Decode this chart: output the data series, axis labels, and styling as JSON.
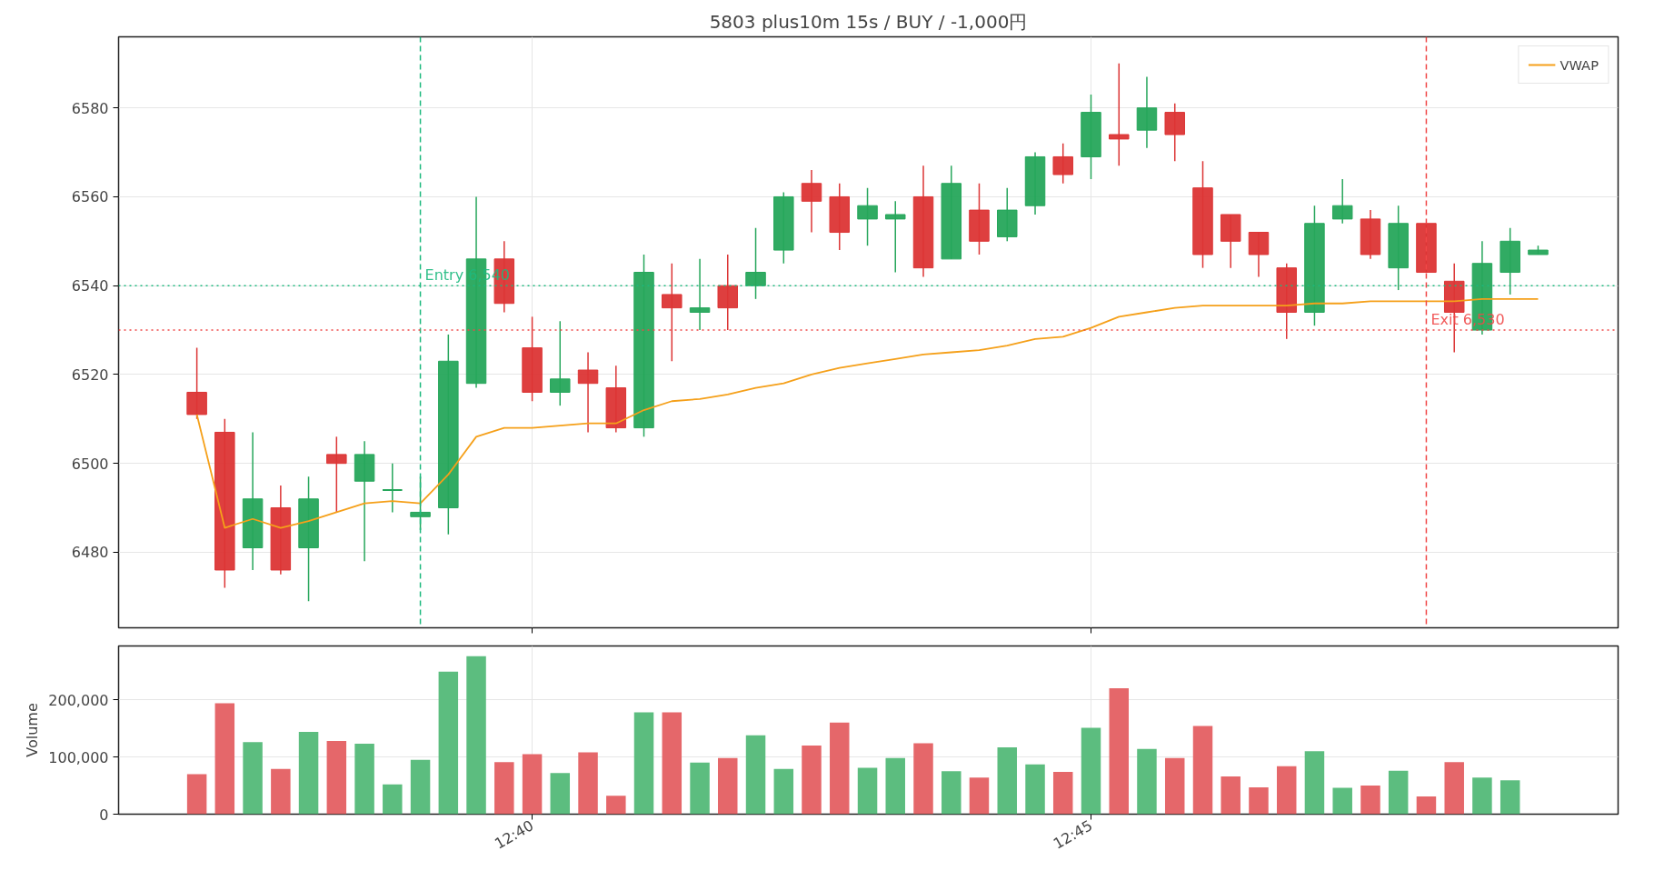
{
  "chart_data": [
    {
      "type": "candlestick",
      "title": "5803 plus10m 15s / BUY / -1,000円",
      "x": [
        12.61667,
        12.62083,
        12.625,
        12.62917,
        12.63333,
        12.6375,
        12.64167,
        12.64583,
        12.65,
        12.65417,
        12.65833,
        12.6625,
        12.66667,
        12.67083,
        12.675,
        12.67917,
        12.68333,
        12.6875,
        12.69167,
        12.69583,
        12.7,
        12.70417,
        12.70833,
        12.7125,
        12.71667,
        12.72083,
        12.725,
        12.72917,
        12.73333,
        12.7375,
        12.74167,
        12.74583,
        12.75,
        12.75417,
        12.75833,
        12.7625,
        12.76667,
        12.77083,
        12.775,
        12.77917,
        12.78333,
        12.7875,
        12.79167,
        12.79583,
        12.8,
        12.80417,
        12.80833,
        12.8125,
        12.81667
      ],
      "ohlc": [
        [
          6516,
          6526,
          6510,
          6511
        ],
        [
          6507,
          6510,
          6472,
          6476
        ],
        [
          6481,
          6507,
          6476,
          6492
        ],
        [
          6490,
          6495,
          6475,
          6476
        ],
        [
          6481,
          6497,
          6469,
          6492
        ],
        [
          6502,
          6506,
          6489,
          6500
        ],
        [
          6496,
          6505,
          6478,
          6502
        ],
        [
          6494,
          6500,
          6489,
          6494
        ],
        [
          6488,
          6497,
          6485,
          6489
        ],
        [
          6490,
          6529,
          6484,
          6523
        ],
        [
          6518,
          6560,
          6517,
          6546
        ],
        [
          6546,
          6550,
          6534,
          6536
        ],
        [
          6526,
          6533,
          6514,
          6516
        ],
        [
          6516,
          6532,
          6513,
          6519
        ],
        [
          6521,
          6525,
          6507,
          6518
        ],
        [
          6517,
          6522,
          6507,
          6508
        ],
        [
          6508,
          6547,
          6506,
          6543
        ],
        [
          6538,
          6545,
          6523,
          6535
        ],
        [
          6534,
          6546,
          6530,
          6535
        ],
        [
          6540,
          6547,
          6530,
          6535
        ],
        [
          6540,
          6553,
          6537,
          6543
        ],
        [
          6548,
          6561,
          6545,
          6560
        ],
        [
          6563,
          6566,
          6552,
          6559
        ],
        [
          6560,
          6563,
          6548,
          6552
        ],
        [
          6555,
          6562,
          6549,
          6558
        ],
        [
          6555,
          6559,
          6543,
          6556
        ],
        [
          6560,
          6567,
          6542,
          6544
        ],
        [
          6546,
          6567,
          6546,
          6563
        ],
        [
          6557,
          6563,
          6547,
          6550
        ],
        [
          6551,
          6562,
          6550,
          6557
        ],
        [
          6558,
          6570,
          6556,
          6569
        ],
        [
          6569,
          6572,
          6563,
          6565
        ],
        [
          6569,
          6583,
          6564,
          6579
        ],
        [
          6574,
          6590,
          6567,
          6573
        ],
        [
          6575,
          6587,
          6571,
          6580
        ],
        [
          6579,
          6581,
          6568,
          6574
        ],
        [
          6562,
          6568,
          6544,
          6547
        ],
        [
          6556,
          6556,
          6544,
          6550
        ],
        [
          6552,
          6552,
          6542,
          6547
        ],
        [
          6544,
          6545,
          6528,
          6534
        ],
        [
          6534,
          6558,
          6531,
          6554
        ],
        [
          6555,
          6564,
          6554,
          6558
        ],
        [
          6555,
          6557,
          6546,
          6547
        ],
        [
          6544,
          6558,
          6539,
          6554
        ],
        [
          6554,
          6554,
          6543,
          6543
        ],
        [
          6541,
          6545,
          6525,
          6534
        ],
        [
          6530,
          6550,
          6529,
          6545
        ],
        [
          6543,
          6553,
          6538,
          6550
        ],
        [
          6547,
          6549,
          6547,
          6548
        ]
      ],
      "colors": [
        "#dc3535",
        "#dc3535",
        "#26a65b",
        "#dc3535",
        "#26a65b",
        "#dc3535",
        "#26a65b",
        "#26a65b",
        "#26a65b",
        "#26a65b",
        "#26a65b",
        "#dc3535",
        "#dc3535",
        "#26a65b",
        "#dc3535",
        "#dc3535",
        "#26a65b",
        "#dc3535",
        "#26a65b",
        "#dc3535",
        "#26a65b",
        "#26a65b",
        "#dc3535",
        "#dc3535",
        "#26a65b",
        "#26a65b",
        "#dc3535",
        "#26a65b",
        "#dc3535",
        "#26a65b",
        "#26a65b",
        "#dc3535",
        "#26a65b",
        "#dc3535",
        "#26a65b",
        "#dc3535",
        "#dc3535",
        "#dc3535",
        "#dc3535",
        "#dc3535",
        "#26a65b",
        "#26a65b",
        "#dc3535",
        "#26a65b",
        "#dc3535",
        "#dc3535",
        "#26a65b",
        "#26a65b",
        "#26a65b"
      ],
      "series": [
        {
          "name": "VWAP",
          "type": "line",
          "color": "#f5a01a",
          "values": [
            6511,
            6485.5,
            6487.5,
            6485.5,
            6487,
            6489,
            6491,
            6491.5,
            6491,
            6497.5,
            6506,
            6508,
            6508,
            6508.5,
            6509,
            6509,
            6512,
            6514,
            6514.5,
            6515.5,
            6517,
            6518,
            6520,
            6521.5,
            6522.5,
            6523.5,
            6524.5,
            6525,
            6525.5,
            6526.5,
            6528,
            6528.5,
            6530.5,
            6533,
            6534,
            6535,
            6535.5,
            6535.5,
            6535.5,
            6535.5,
            6536,
            6536,
            6536.5,
            6536.5,
            6536.5,
            6536.5,
            6537,
            6537,
            6537
          ]
        }
      ],
      "ref_lines": [
        {
          "axis": "x",
          "value": 12.65,
          "color": "#1db97e",
          "line_style": "dashed"
        },
        {
          "axis": "x",
          "value": 12.8,
          "color": "#f04848",
          "line_style": "dashed"
        },
        {
          "axis": "y",
          "value": 6540,
          "color": "#1db97e",
          "line_style": "dotted"
        },
        {
          "axis": "y",
          "value": 6530,
          "color": "#f04848",
          "line_style": "dotted"
        }
      ],
      "annotations": [
        {
          "text": "Entry 6,540",
          "x": 12.65,
          "y": 6540
        },
        {
          "text": "Exit 6,530",
          "x": 12.8,
          "y": 6530
        }
      ],
      "xlim": [
        12.605,
        12.8286
      ],
      "ylim": [
        6463,
        6596
      ],
      "yticks": [
        6480,
        6500,
        6520,
        6540,
        6560,
        6580
      ],
      "tick_labels": "y",
      "grid": true,
      "legend": "top right"
    },
    {
      "type": "bar",
      "ylabel": "Volume",
      "x": [
        12.61667,
        12.62083,
        12.625,
        12.62917,
        12.63333,
        12.6375,
        12.64167,
        12.64583,
        12.65,
        12.65417,
        12.65833,
        12.6625,
        12.66667,
        12.67083,
        12.675,
        12.67917,
        12.68333,
        12.6875,
        12.69167,
        12.69583,
        12.7,
        12.70417,
        12.70833,
        12.7125,
        12.71667,
        12.72083,
        12.725,
        12.72917,
        12.73333,
        12.7375,
        12.74167,
        12.74583,
        12.75,
        12.75417,
        12.75833,
        12.7625,
        12.76667,
        12.77083,
        12.775,
        12.77917,
        12.78333,
        12.7875,
        12.79167,
        12.79583,
        12.8,
        12.80417,
        12.80833,
        12.8125,
        12.81667
      ],
      "values": [
        70000,
        194000,
        126000,
        79000,
        144000,
        128000,
        123000,
        52000,
        95000,
        249000,
        276000,
        91000,
        105000,
        72000,
        108000,
        32000,
        178000,
        178000,
        90000,
        98000,
        138000,
        79000,
        120000,
        160000,
        81000,
        98000,
        124000,
        75000,
        64000,
        117000,
        87000,
        74000,
        151000,
        220000,
        114000,
        98000,
        154000,
        66000,
        47000,
        84000,
        110000,
        46000,
        50000,
        76000,
        31000,
        91000,
        64000,
        59000,
        0
      ],
      "colors": [
        "#e5676a",
        "#e5676a",
        "#5cbd7f",
        "#e5676a",
        "#5cbd7f",
        "#e5676a",
        "#5cbd7f",
        "#5cbd7f",
        "#5cbd7f",
        "#5cbd7f",
        "#5cbd7f",
        "#e5676a",
        "#e5676a",
        "#5cbd7f",
        "#e5676a",
        "#e5676a",
        "#5cbd7f",
        "#e5676a",
        "#5cbd7f",
        "#e5676a",
        "#5cbd7f",
        "#5cbd7f",
        "#e5676a",
        "#e5676a",
        "#5cbd7f",
        "#5cbd7f",
        "#e5676a",
        "#5cbd7f",
        "#e5676a",
        "#5cbd7f",
        "#5cbd7f",
        "#e5676a",
        "#5cbd7f",
        "#e5676a",
        "#5cbd7f",
        "#e5676a",
        "#e5676a",
        "#e5676a",
        "#e5676a",
        "#e5676a",
        "#5cbd7f",
        "#5cbd7f",
        "#e5676a",
        "#5cbd7f",
        "#e5676a",
        "#e5676a",
        "#5cbd7f",
        "#5cbd7f",
        "#5cbd7f"
      ],
      "xlim": [
        12.605,
        12.8286
      ],
      "ylim": [
        0,
        294000
      ],
      "xticks": [
        {
          "value": 12.66667,
          "label": "12:40"
        },
        {
          "value": 12.75,
          "label": "12:45"
        }
      ],
      "yticks": [
        {
          "value": 0,
          "label": "0"
        },
        {
          "value": 100000,
          "label": "100,000"
        },
        {
          "value": 200000,
          "label": "200,000"
        }
      ],
      "grid": true
    }
  ]
}
